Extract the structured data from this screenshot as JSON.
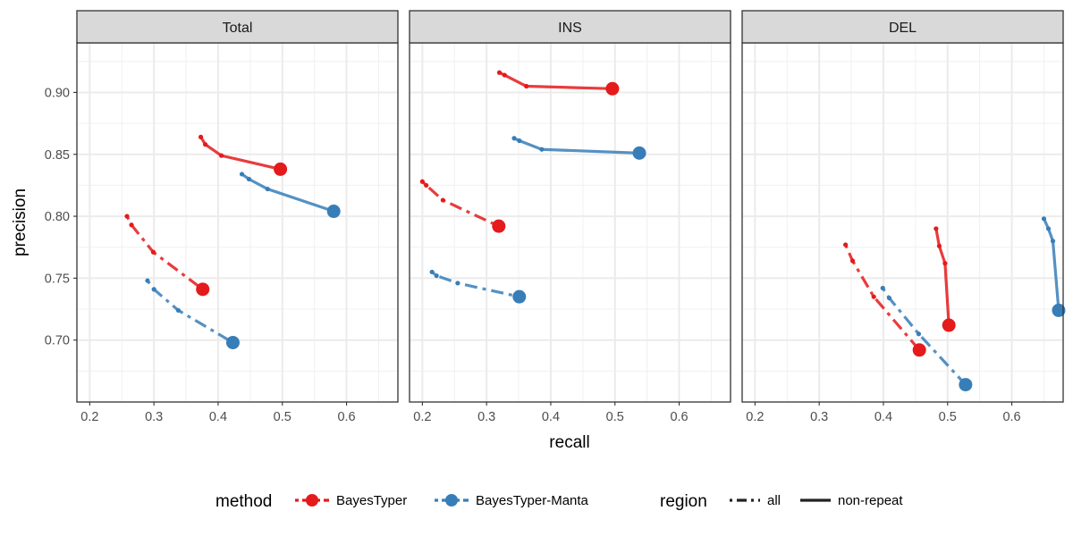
{
  "chart_data": {
    "type": "line",
    "xlabel": "recall",
    "ylabel": "precision",
    "xlim": [
      0.18,
      0.68
    ],
    "ylim": [
      0.65,
      0.94
    ],
    "x_ticks": [
      0.2,
      0.3,
      0.4,
      0.5,
      0.6
    ],
    "x_tick_labels": [
      "0.2",
      "0.3",
      "0.4",
      "0.5",
      "0.6"
    ],
    "y_ticks": [
      0.7,
      0.75,
      0.8,
      0.85,
      0.9
    ],
    "y_tick_labels": [
      "0.70",
      "0.75",
      "0.80",
      "0.85",
      "0.90"
    ],
    "grid": true,
    "colors": {
      "BayesTyper": "#e41a1c",
      "BayesTyper-Manta": "#377eb8"
    },
    "legend": {
      "position": "bottom",
      "method_title": "method",
      "method_items": [
        "BayesTyper",
        "BayesTyper-Manta"
      ],
      "region_title": "region",
      "region_items": [
        "all",
        "non-repeat"
      ]
    },
    "panels": [
      {
        "title": "Total",
        "series": [
          {
            "method": "BayesTyper",
            "region": "non-repeat",
            "points": [
              [
                0.373,
                0.864
              ],
              [
                0.38,
                0.858
              ],
              [
                0.405,
                0.849
              ],
              [
                0.497,
                0.838
              ]
            ]
          },
          {
            "method": "BayesTyper-Manta",
            "region": "non-repeat",
            "points": [
              [
                0.437,
                0.834
              ],
              [
                0.448,
                0.83
              ],
              [
                0.477,
                0.822
              ],
              [
                0.58,
                0.804
              ]
            ]
          },
          {
            "method": "BayesTyper",
            "region": "all",
            "points": [
              [
                0.258,
                0.8
              ],
              [
                0.265,
                0.793
              ],
              [
                0.299,
                0.771
              ],
              [
                0.376,
                0.741
              ]
            ]
          },
          {
            "method": "BayesTyper-Manta",
            "region": "all",
            "points": [
              [
                0.29,
                0.748
              ],
              [
                0.3,
                0.741
              ],
              [
                0.338,
                0.724
              ],
              [
                0.423,
                0.698
              ]
            ]
          }
        ]
      },
      {
        "title": "INS",
        "series": [
          {
            "method": "BayesTyper",
            "region": "non-repeat",
            "points": [
              [
                0.32,
                0.916
              ],
              [
                0.328,
                0.914
              ],
              [
                0.362,
                0.905
              ],
              [
                0.496,
                0.903
              ]
            ]
          },
          {
            "method": "BayesTyper-Manta",
            "region": "non-repeat",
            "points": [
              [
                0.343,
                0.863
              ],
              [
                0.351,
                0.861
              ],
              [
                0.386,
                0.854
              ],
              [
                0.538,
                0.851
              ]
            ]
          },
          {
            "method": "BayesTyper",
            "region": "all",
            "points": [
              [
                0.2,
                0.828
              ],
              [
                0.206,
                0.825
              ],
              [
                0.232,
                0.813
              ],
              [
                0.319,
                0.792
              ]
            ]
          },
          {
            "method": "BayesTyper-Manta",
            "region": "all",
            "points": [
              [
                0.215,
                0.755
              ],
              [
                0.222,
                0.752
              ],
              [
                0.255,
                0.746
              ],
              [
                0.351,
                0.735
              ]
            ]
          }
        ]
      },
      {
        "title": "DEL",
        "series": [
          {
            "method": "BayesTyper",
            "region": "non-repeat",
            "points": [
              [
                0.482,
                0.79
              ],
              [
                0.487,
                0.776
              ],
              [
                0.496,
                0.762
              ],
              [
                0.502,
                0.712
              ]
            ]
          },
          {
            "method": "BayesTyper-Manta",
            "region": "non-repeat",
            "points": [
              [
                0.65,
                0.798
              ],
              [
                0.657,
                0.79
              ],
              [
                0.664,
                0.78
              ],
              [
                0.673,
                0.724
              ]
            ]
          },
          {
            "method": "BayesTyper",
            "region": "all",
            "points": [
              [
                0.341,
                0.777
              ],
              [
                0.352,
                0.764
              ],
              [
                0.385,
                0.735
              ],
              [
                0.456,
                0.692
              ]
            ]
          },
          {
            "method": "BayesTyper-Manta",
            "region": "all",
            "points": [
              [
                0.399,
                0.742
              ],
              [
                0.409,
                0.734
              ],
              [
                0.455,
                0.705
              ],
              [
                0.528,
                0.664
              ]
            ]
          }
        ]
      }
    ]
  }
}
